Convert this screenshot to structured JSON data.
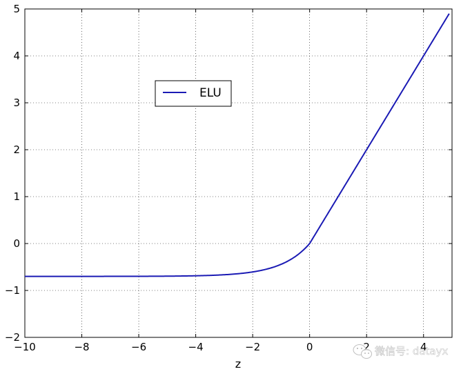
{
  "chart_data": {
    "type": "line",
    "title": "",
    "xlabel": "z",
    "ylabel": "",
    "xlim": [
      -10,
      5
    ],
    "ylim": [
      -2,
      5
    ],
    "xticks": [
      -10,
      -8,
      -6,
      -4,
      -2,
      0,
      2,
      4
    ],
    "xtick_labels": [
      "−10",
      "−8",
      "−6",
      "−4",
      "−2",
      "0",
      "2",
      "4"
    ],
    "yticks": [
      -2,
      -1,
      0,
      1,
      2,
      3,
      4,
      5
    ],
    "ytick_labels": [
      "−2",
      "−1",
      "0",
      "1",
      "2",
      "3",
      "4",
      "5"
    ],
    "grid": true,
    "legend_position": "upper-left",
    "series": [
      {
        "name": "ELU",
        "color": "#1a1ab4",
        "function": "elu",
        "alpha": 0.7,
        "x_range": [
          -10,
          4.9
        ]
      }
    ]
  },
  "watermark": {
    "text": "微信号: datayx",
    "icon": "wechat-icon"
  }
}
